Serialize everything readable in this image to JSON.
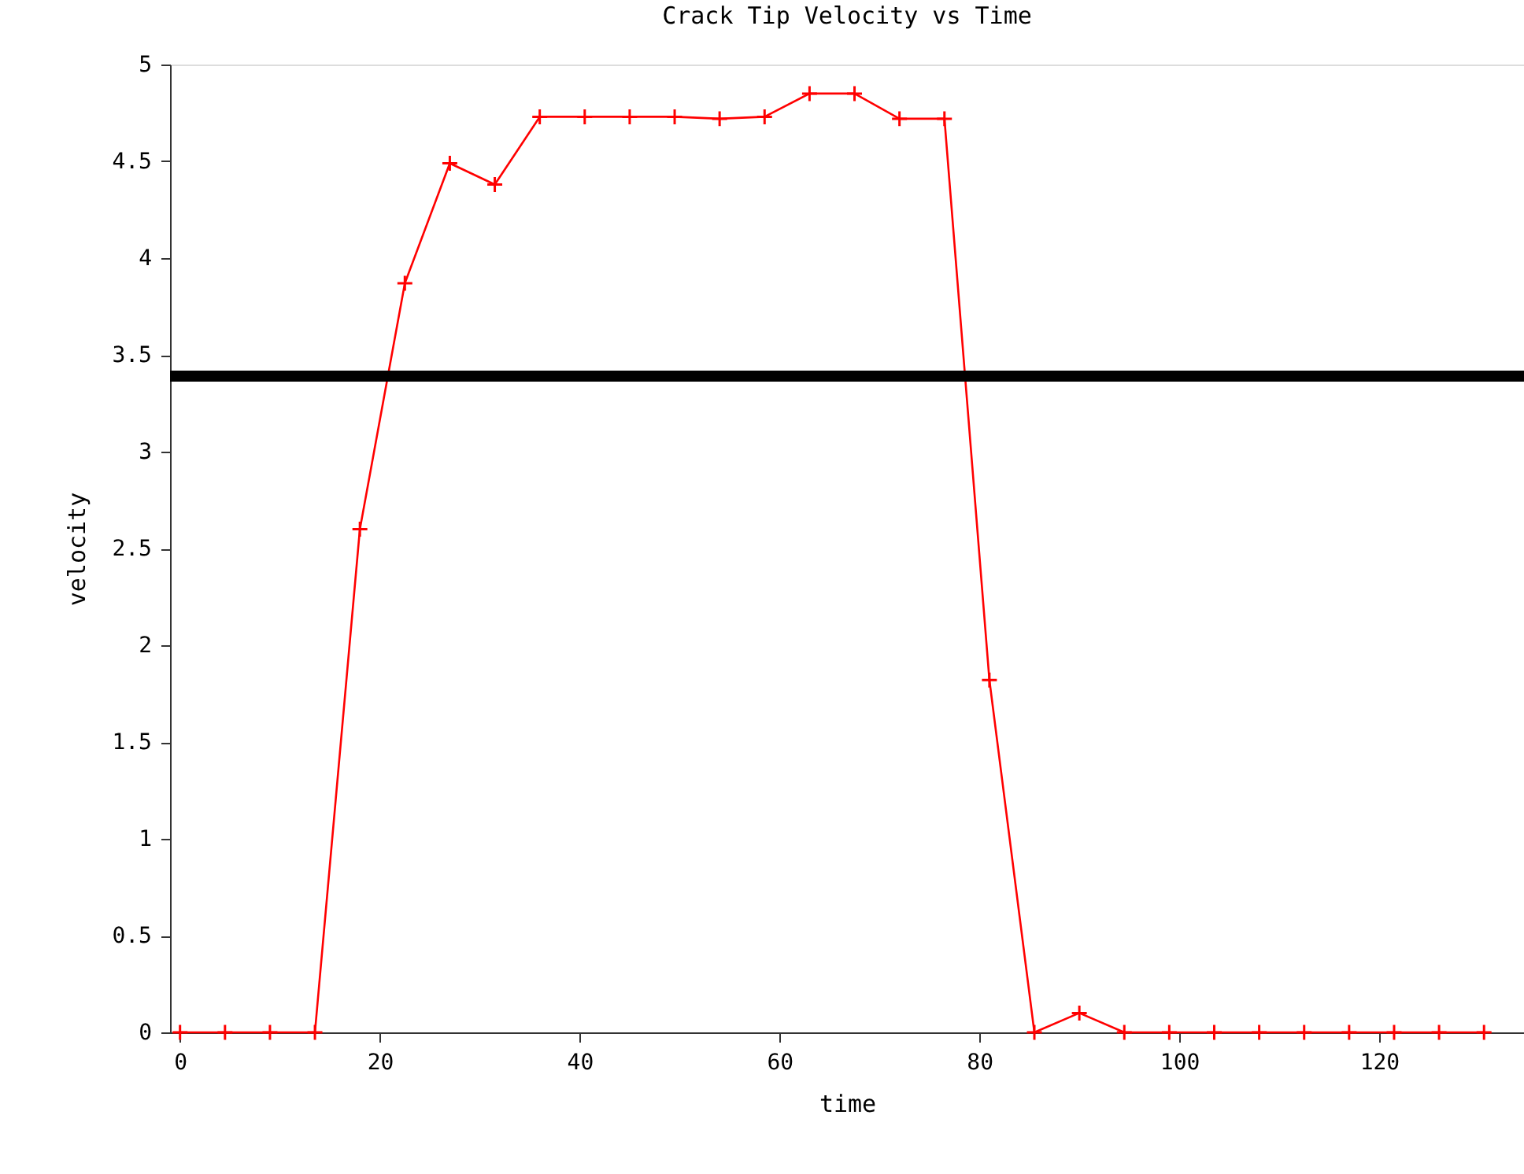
{
  "chart_data": {
    "type": "line",
    "title": "Crack Tip Velocity vs Time",
    "xlabel": "time",
    "ylabel": "velocity",
    "x": [
      0,
      4.5,
      9,
      13.5,
      18,
      22.5,
      27,
      31.5,
      36,
      40.5,
      45,
      49.5,
      54,
      58.5,
      63,
      67.5,
      72,
      76.5,
      81,
      85.5,
      90,
      94.5,
      99,
      103.5,
      108,
      112.5,
      117,
      121.5,
      126,
      130.5
    ],
    "series": [
      {
        "color": "#ff0000",
        "values": [
          0,
          0,
          0,
          0,
          2.6,
          3.87,
          4.49,
          4.38,
          4.73,
          4.73,
          4.73,
          4.73,
          4.72,
          4.73,
          4.85,
          4.85,
          4.72,
          4.72,
          1.82,
          0,
          0.1,
          0,
          0,
          0,
          0,
          0,
          0,
          0,
          0,
          0
        ]
      }
    ],
    "xlim": [
      -1,
      134.5
    ],
    "xticks": [
      0,
      20,
      40,
      60,
      80,
      100,
      120
    ],
    "ylim": [
      0,
      5
    ],
    "yticks": [
      0,
      0.5,
      1,
      1.5,
      2,
      2.5,
      3,
      3.5,
      4,
      4.5,
      5
    ],
    "ref_lines": [
      {
        "axis": "y",
        "value": 3.39,
        "color": "#000000"
      }
    ],
    "marker": "cross",
    "line_style": "solid",
    "grid": false,
    "legend": false
  }
}
